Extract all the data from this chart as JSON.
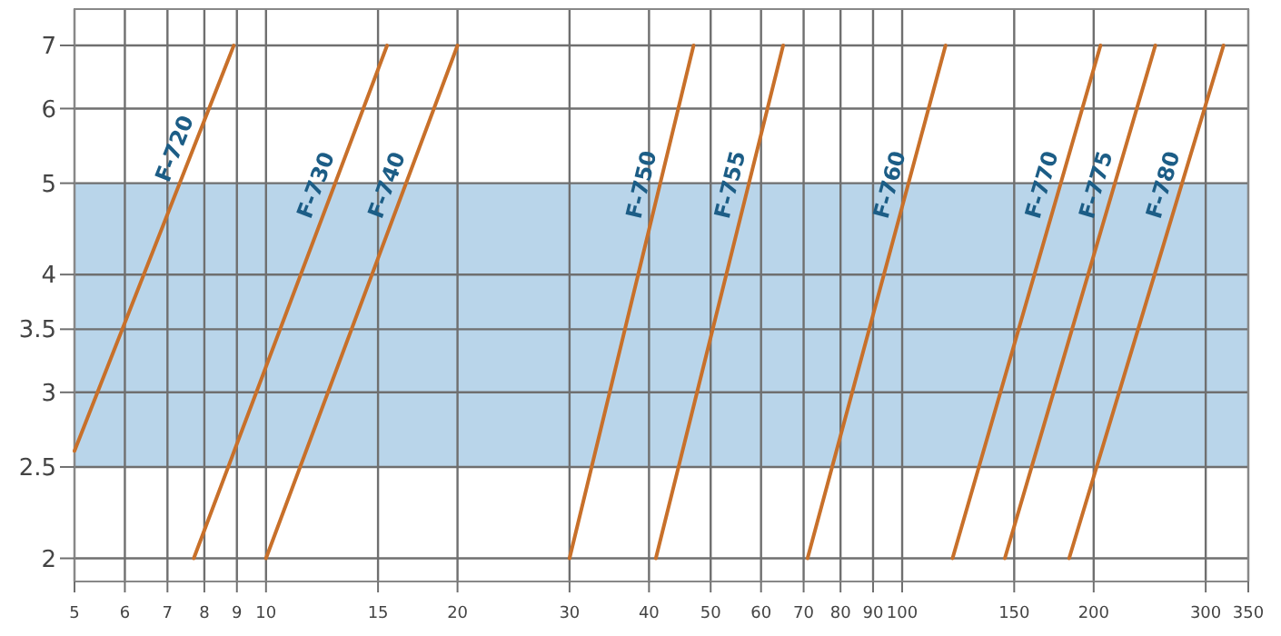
{
  "chart_data": {
    "type": "line",
    "log": "xy",
    "grid": true,
    "marker": "none",
    "line_style": "solid",
    "xlim": [
      5,
      350
    ],
    "xticks": [
      5,
      6,
      7,
      8,
      9,
      10,
      15,
      20,
      30,
      40,
      50,
      60,
      70,
      80,
      90,
      100,
      150,
      200,
      300,
      350
    ],
    "ylim": [
      1.89,
      7.65
    ],
    "yticks": [
      2,
      2.5,
      3,
      3.5,
      4,
      5,
      6,
      7
    ],
    "bands": [
      {
        "axis": "y",
        "from": 2.5,
        "to": 5,
        "color": "#b9d5ea"
      }
    ],
    "series": [
      {
        "name": "F-720",
        "color": "#c8702a",
        "x": [
          5,
          8.9
        ],
        "values": [
          2.6,
          7
        ]
      },
      {
        "name": "F-730",
        "color": "#c8702a",
        "x": [
          7.7,
          15.5
        ],
        "values": [
          2,
          7
        ]
      },
      {
        "name": "F-740",
        "color": "#c8702a",
        "x": [
          10,
          20
        ],
        "values": [
          2,
          7
        ]
      },
      {
        "name": "F-750",
        "color": "#c8702a",
        "x": [
          30,
          47
        ],
        "values": [
          2,
          7
        ]
      },
      {
        "name": "F-755",
        "color": "#c8702a",
        "x": [
          41,
          65
        ],
        "values": [
          2,
          7
        ]
      },
      {
        "name": "F-760",
        "color": "#c8702a",
        "x": [
          71,
          117
        ],
        "values": [
          2,
          7
        ]
      },
      {
        "name": "F-770",
        "color": "#c8702a",
        "x": [
          120,
          205
        ],
        "values": [
          2,
          7
        ]
      },
      {
        "name": "F-775",
        "color": "#c8702a",
        "x": [
          145,
          250
        ],
        "values": [
          2,
          7
        ]
      },
      {
        "name": "F-780",
        "color": "#c8702a",
        "x": [
          183,
          320
        ],
        "values": [
          2,
          7
        ]
      }
    ]
  }
}
